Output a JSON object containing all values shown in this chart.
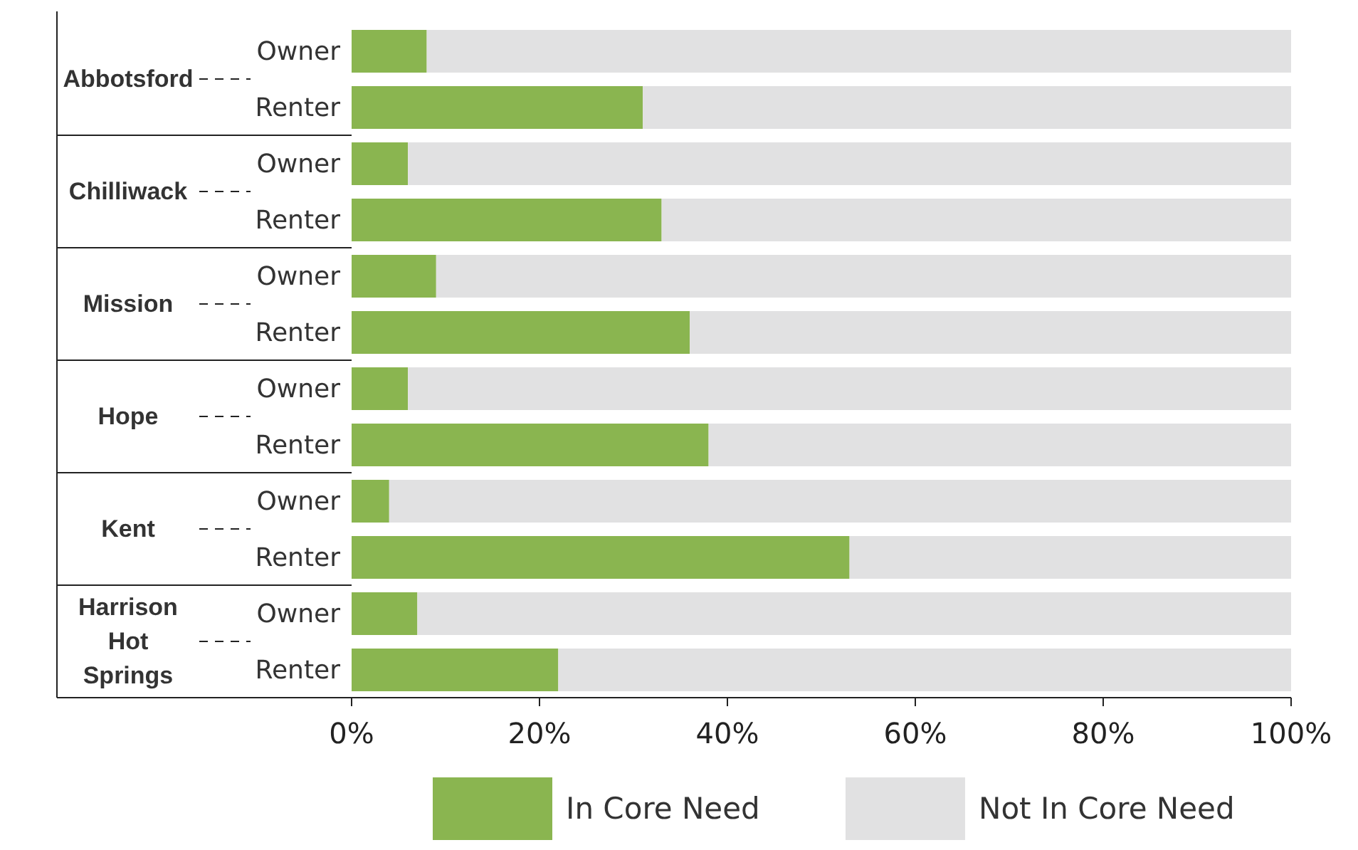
{
  "chart_data": {
    "type": "bar",
    "orientation": "horizontal",
    "stacked": true,
    "categories": [
      "Owner",
      "Renter",
      "Owner",
      "Renter",
      "Owner",
      "Renter",
      "Owner",
      "Renter",
      "Owner",
      "Renter",
      "Owner",
      "Renter"
    ],
    "annotations": [
      "Abbotsford",
      "Chilliwack",
      "Mission",
      "Hope",
      "Kent",
      "Harrison Hot Springs"
    ],
    "series": [
      {
        "name": "In Core Need",
        "color": "#8ab550",
        "values": [
          8,
          31,
          6,
          33,
          9,
          36,
          6,
          38,
          4,
          53,
          7,
          22
        ]
      },
      {
        "name": "Not In Core Need",
        "color": "#e1e1e2",
        "values": [
          92,
          69,
          94,
          67,
          91,
          64,
          94,
          62,
          96,
          47,
          93,
          78
        ]
      }
    ],
    "xlim": [
      0,
      100
    ],
    "xticks": [
      {
        "value": 0,
        "label": "0%"
      },
      {
        "value": 20,
        "label": "20%"
      },
      {
        "value": 40,
        "label": "40%"
      },
      {
        "value": 60,
        "label": "60%"
      },
      {
        "value": 80,
        "label": "80%"
      },
      {
        "value": 100,
        "label": "100%"
      }
    ],
    "grid": false,
    "legend": "bottom"
  }
}
